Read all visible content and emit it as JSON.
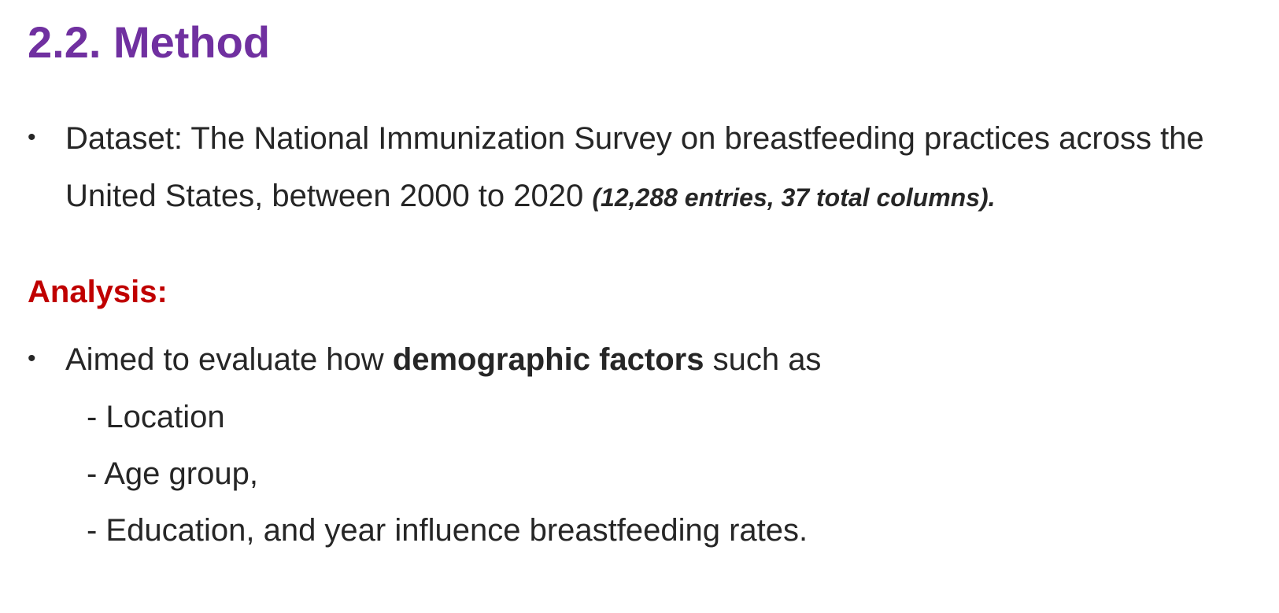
{
  "slide": {
    "title": "2.2. Method",
    "bullet_glyph": "•",
    "dataset": {
      "line1": "Dataset: The National Immunization Survey on breastfeeding practices across the",
      "line2": "United States, between 2000 to 2020 ",
      "note": "(12,288 entries, 37 total columns)",
      "note_end": "."
    },
    "analysis_heading": "Analysis:",
    "analysis": {
      "lead": "Aimed to evaluate how ",
      "emphasis": "demographic factors",
      "tail": " such as",
      "items": [
        "- Location",
        "- Age group,",
        "- Education, and year influence breastfeeding rates."
      ]
    },
    "colors": {
      "title": "#7030a0",
      "heading": "#c00000",
      "body": "#262626"
    }
  }
}
